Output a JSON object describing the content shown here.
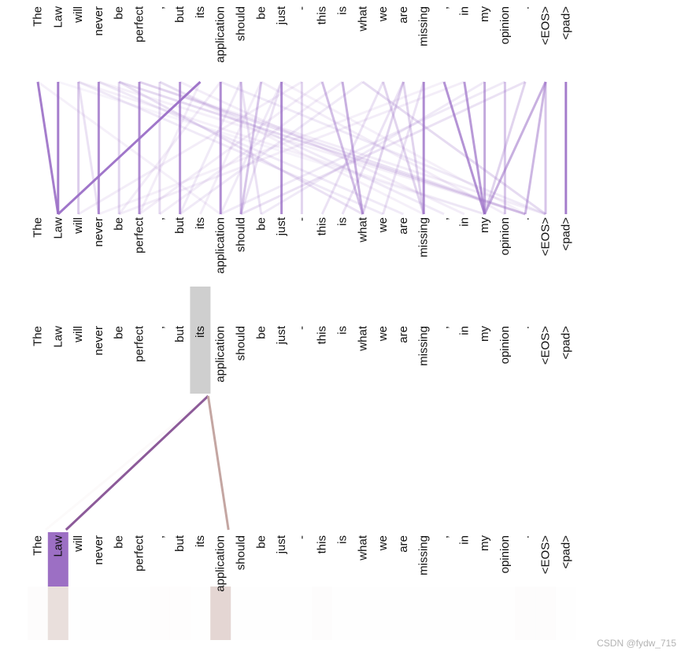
{
  "tokens": [
    "The",
    "Law",
    "will",
    "never",
    "be",
    "perfect",
    ",",
    "but",
    "its",
    "application",
    "should",
    "be",
    "just",
    "-",
    "this",
    "is",
    "what",
    "we",
    "are",
    "missing",
    ",",
    "in",
    "my",
    "opinion",
    ".",
    "<EOS>",
    "<pad>"
  ],
  "colors": {
    "attention": "#9b6fc7",
    "selected_line": "#8c5a99",
    "secondary_line": "#c4a6a2",
    "selected_box": "#cfcfcf",
    "top_box": "#9c6fc4",
    "bottom_box": "#c9aea7"
  },
  "top_panel": {
    "edges": [
      {
        "from": 0,
        "to": 1,
        "w": 0.9
      },
      {
        "from": 1,
        "to": 1,
        "w": 0.9
      },
      {
        "from": 8,
        "to": 1,
        "w": 0.95
      },
      {
        "from": 2,
        "to": 2,
        "w": 0.35
      },
      {
        "from": 3,
        "to": 3,
        "w": 0.8
      },
      {
        "from": 2,
        "to": 3,
        "w": 0.2
      },
      {
        "from": 4,
        "to": 4,
        "w": 0.3
      },
      {
        "from": 5,
        "to": 5,
        "w": 0.8
      },
      {
        "from": 6,
        "to": 6,
        "w": 0.25
      },
      {
        "from": 7,
        "to": 7,
        "w": 0.75
      },
      {
        "from": 9,
        "to": 9,
        "w": 0.8
      },
      {
        "from": 10,
        "to": 10,
        "w": 0.4
      },
      {
        "from": 12,
        "to": 12,
        "w": 0.8
      },
      {
        "from": 13,
        "to": 13,
        "w": 0.3
      },
      {
        "from": 19,
        "to": 19,
        "w": 0.8
      },
      {
        "from": 26,
        "to": 26,
        "w": 0.9
      },
      {
        "from": 15,
        "to": 16,
        "w": 0.55
      },
      {
        "from": 14,
        "to": 16,
        "w": 0.45
      },
      {
        "from": 20,
        "to": 22,
        "w": 0.75
      },
      {
        "from": 21,
        "to": 22,
        "w": 0.7
      },
      {
        "from": 22,
        "to": 22,
        "w": 0.6
      },
      {
        "from": 25,
        "to": 22,
        "w": 0.55
      },
      {
        "from": 24,
        "to": 22,
        "w": 0.3
      },
      {
        "from": 23,
        "to": 23,
        "w": 0.4
      },
      {
        "from": 11,
        "to": 10,
        "w": 0.4
      },
      {
        "from": 12,
        "to": 10,
        "w": 0.2
      },
      {
        "from": 10,
        "to": 11,
        "w": 0.2
      },
      {
        "from": 17,
        "to": 19,
        "w": 0.3
      },
      {
        "from": 18,
        "to": 19,
        "w": 0.3
      },
      {
        "from": 18,
        "to": 16,
        "w": 0.3
      },
      {
        "from": 25,
        "to": 24,
        "w": 0.5
      },
      {
        "from": 25,
        "to": 25,
        "w": 0.4
      },
      {
        "from": 16,
        "to": 25,
        "w": 0.25
      },
      {
        "from": 4,
        "to": 24,
        "w": 0.25
      },
      {
        "from": 4,
        "to": 16,
        "w": 0.2
      },
      {
        "from": 5,
        "to": 24,
        "w": 0.2
      },
      {
        "from": 9,
        "to": 25,
        "w": 0.15
      },
      {
        "from": 2,
        "to": 17,
        "w": 0.15
      },
      {
        "from": 3,
        "to": 18,
        "w": 0.15
      },
      {
        "from": 6,
        "to": 20,
        "w": 0.15
      },
      {
        "from": 7,
        "to": 21,
        "w": 0.12
      },
      {
        "from": 0,
        "to": 9,
        "w": 0.1
      },
      {
        "from": 24,
        "to": 10,
        "w": 0.2
      },
      {
        "from": 23,
        "to": 9,
        "w": 0.15
      },
      {
        "from": 22,
        "to": 11,
        "w": 0.15
      },
      {
        "from": 21,
        "to": 4,
        "w": 0.12
      },
      {
        "from": 20,
        "to": 3,
        "w": 0.1
      },
      {
        "from": 16,
        "to": 7,
        "w": 0.15
      },
      {
        "from": 15,
        "to": 6,
        "w": 0.12
      },
      {
        "from": 14,
        "to": 5,
        "w": 0.12
      },
      {
        "from": 13,
        "to": 2,
        "w": 0.12
      },
      {
        "from": 17,
        "to": 14,
        "w": 0.2
      },
      {
        "from": 18,
        "to": 15,
        "w": 0.2
      },
      {
        "from": 19,
        "to": 17,
        "w": 0.2
      },
      {
        "from": 12,
        "to": 9,
        "w": 0.15
      },
      {
        "from": 11,
        "to": 8,
        "w": 0.12
      },
      {
        "from": 10,
        "to": 7,
        "w": 0.15
      },
      {
        "from": 8,
        "to": 5,
        "w": 0.12
      },
      {
        "from": 9,
        "to": 4,
        "w": 0.12
      },
      {
        "from": 5,
        "to": 25,
        "w": 0.12
      },
      {
        "from": 3,
        "to": 24,
        "w": 0.1
      },
      {
        "from": 2,
        "to": 22,
        "w": 0.1
      },
      {
        "from": 6,
        "to": 19,
        "w": 0.1
      },
      {
        "from": 1,
        "to": 22,
        "w": 0.08
      },
      {
        "from": 11,
        "to": 23,
        "w": 0.12
      },
      {
        "from": 12,
        "to": 24,
        "w": 0.1
      }
    ]
  },
  "bottom_panel": {
    "selected_token": 8,
    "edges": [
      {
        "from": 8,
        "to": 1,
        "w": 0.85
      },
      {
        "from": 8,
        "to": 9,
        "w": 0.75
      },
      {
        "from": 8,
        "to": 0,
        "w": 0.05
      }
    ],
    "weights": [
      0.04,
      0.4,
      0.01,
      0.01,
      0.01,
      0.01,
      0.02,
      0.02,
      0.01,
      0.5,
      0.01,
      0.01,
      0.01,
      0.01,
      0.03,
      0.01,
      0.01,
      0.01,
      0.01,
      0.01,
      0.01,
      0.01,
      0.01,
      0.01,
      0.03,
      0.03,
      0.01
    ]
  },
  "watermark": "CSDN @fydw_715"
}
